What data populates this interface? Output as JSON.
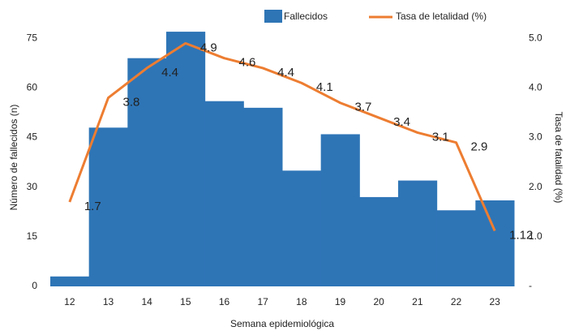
{
  "chart_data": {
    "type": "bar_line",
    "x_label": "Semana epidemiológica",
    "y_label": "Número de fallecidos (n)",
    "y2_label": "Tasa de fatalidad (%)",
    "categories": [
      "12",
      "13",
      "14",
      "15",
      "16",
      "17",
      "18",
      "19",
      "20",
      "21",
      "22",
      "23"
    ],
    "series": [
      {
        "name": "Fallecidos",
        "color": "#2e75b6",
        "values": [
          3,
          48,
          69,
          77,
          56,
          54,
          35,
          46,
          27,
          32,
          23,
          26
        ]
      },
      {
        "name": "Tasa de letalidad (%)",
        "color": "#ed7d31",
        "axis": "y2",
        "values": [
          1.7,
          3.8,
          4.4,
          4.9,
          4.6,
          4.4,
          4.1,
          3.7,
          3.4,
          3.1,
          2.9,
          1.12
        ]
      }
    ],
    "ylim": [
      0,
      78
    ],
    "yticks": [
      0,
      15,
      30,
      45,
      60,
      75
    ],
    "y2lim": [
      0,
      5.2
    ],
    "y2ticks": [
      {
        "value": 0,
        "label": "-"
      },
      {
        "value": 1,
        "label": "1.0"
      },
      {
        "value": 2,
        "label": "2.0"
      },
      {
        "value": 3,
        "label": "3.0"
      },
      {
        "value": 4,
        "label": "4.0"
      },
      {
        "value": 5,
        "label": "5.0"
      }
    ],
    "legend": "top-right"
  }
}
